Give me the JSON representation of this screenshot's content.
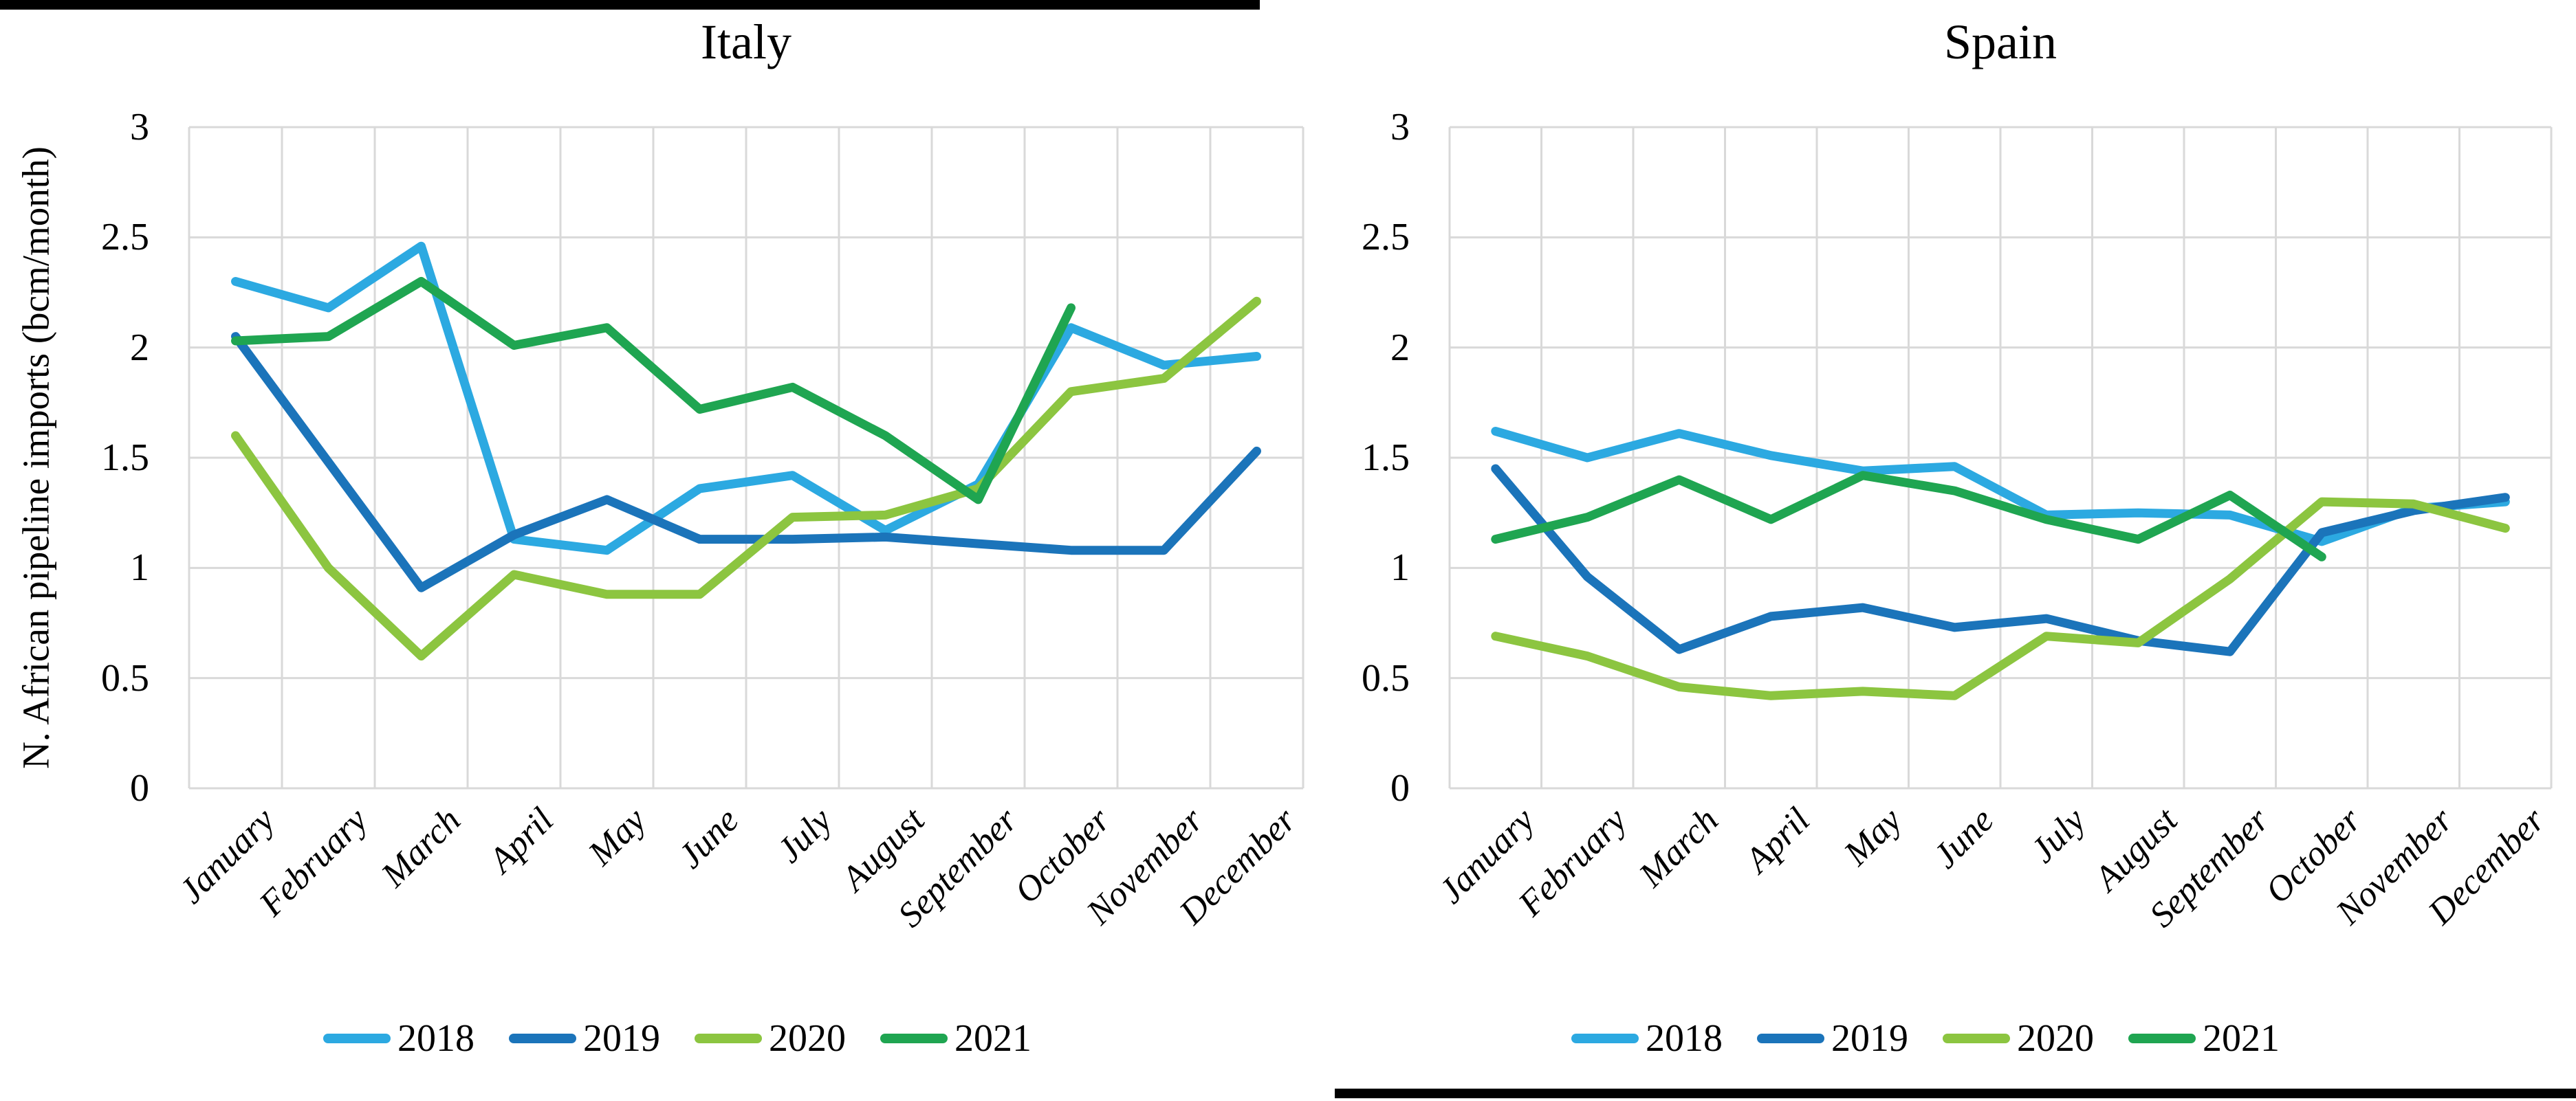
{
  "page": {
    "background": "#ffffff",
    "top_bar_color": "#000000",
    "bottom_bar_color": "#000000"
  },
  "y_axis_title": "N. African pipeline imports (bcm/month)",
  "grid_color": "#d9d9d9",
  "chart_data": [
    {
      "type": "line",
      "title": "Italy",
      "xlabel": "",
      "ylabel": "N. African pipeline imports (bcm/month)",
      "ylim": [
        0,
        3
      ],
      "ytick_labels": [
        "3",
        "2.5",
        "2",
        "1.5",
        "1",
        "0.5",
        "0"
      ],
      "grid": true,
      "legend_position": "bottom",
      "categories": [
        "January",
        "February",
        "March",
        "April",
        "May",
        "June",
        "July",
        "August",
        "September",
        "October",
        "November",
        "December"
      ],
      "series": [
        {
          "name": "2018",
          "color": "#2ca9e1",
          "values": [
            2.3,
            2.18,
            2.46,
            1.13,
            1.08,
            1.36,
            1.42,
            1.17,
            1.38,
            2.09,
            1.92,
            1.96
          ]
        },
        {
          "name": "2019",
          "color": "#1b74ba",
          "values": [
            2.05,
            1.48,
            0.91,
            1.15,
            1.31,
            1.13,
            1.13,
            1.14,
            1.11,
            1.08,
            1.08,
            1.53
          ]
        },
        {
          "name": "2020",
          "color": "#8cc540",
          "values": [
            1.6,
            1.0,
            0.6,
            0.97,
            0.88,
            0.88,
            1.23,
            1.24,
            1.36,
            1.8,
            1.86,
            2.21
          ]
        },
        {
          "name": "2021",
          "color": "#1fa551",
          "values": [
            2.03,
            2.05,
            2.3,
            2.01,
            2.09,
            1.72,
            1.82,
            1.6,
            1.31,
            2.18,
            null,
            null
          ]
        }
      ]
    },
    {
      "type": "line",
      "title": "Spain",
      "xlabel": "",
      "ylabel": "",
      "ylim": [
        0,
        3
      ],
      "ytick_labels": [
        "3",
        "2.5",
        "2",
        "1.5",
        "1",
        "0.5",
        "0"
      ],
      "grid": true,
      "legend_position": "bottom",
      "categories": [
        "January",
        "February",
        "March",
        "April",
        "May",
        "June",
        "July",
        "August",
        "September",
        "October",
        "November",
        "December"
      ],
      "series": [
        {
          "name": "2018",
          "color": "#2ca9e1",
          "values": [
            1.62,
            1.5,
            1.61,
            1.51,
            1.44,
            1.46,
            1.24,
            1.25,
            1.24,
            1.12,
            1.27,
            1.3
          ]
        },
        {
          "name": "2019",
          "color": "#1b74ba",
          "values": [
            1.45,
            0.96,
            0.63,
            0.78,
            0.82,
            0.73,
            0.77,
            0.67,
            0.62,
            1.16,
            1.26,
            1.32
          ]
        },
        {
          "name": "2020",
          "color": "#8cc540",
          "values": [
            0.69,
            0.6,
            0.46,
            0.42,
            0.44,
            0.42,
            0.69,
            0.66,
            0.95,
            1.3,
            1.29,
            1.18
          ]
        },
        {
          "name": "2021",
          "color": "#1fa551",
          "values": [
            1.13,
            1.23,
            1.4,
            1.22,
            1.42,
            1.35,
            1.22,
            1.13,
            1.33,
            1.05,
            null,
            null
          ]
        }
      ]
    }
  ]
}
